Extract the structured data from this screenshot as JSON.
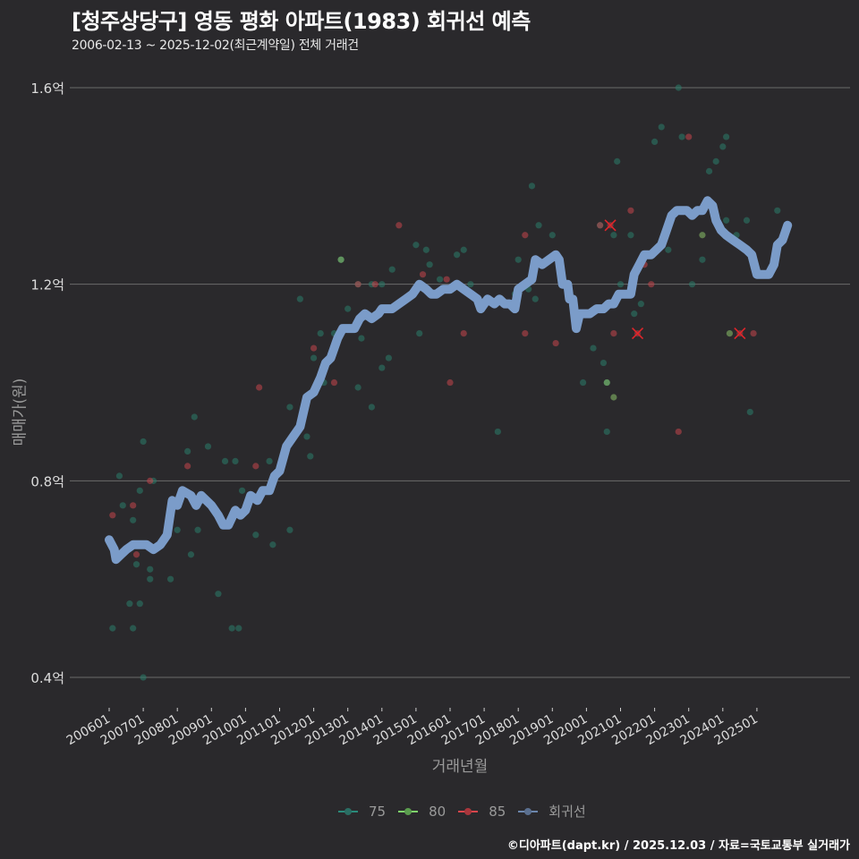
{
  "header": {
    "title": "[청주상당구] 영동 평화 아파트(1983) 회귀선 예측",
    "subtitle": "2006-02-13 ~ 2025-12-02(최근계약일) 전체 거래건"
  },
  "axes": {
    "ylabel": "매매가(원)",
    "xlabel": "거래년월"
  },
  "legend": {
    "items": [
      {
        "label": "75",
        "color": "#2a8a7a"
      },
      {
        "label": "80",
        "color": "#7fd36b"
      },
      {
        "label": "85",
        "color": "#d9454c"
      },
      {
        "label": "회귀선",
        "color": "#7b9cc9"
      }
    ]
  },
  "footer": {
    "credit": "©디아파트(dapt.kr) / 2025.12.03 / 자료=국토교통부 실거래가"
  },
  "colors": {
    "background": "#2a292c",
    "grid": "#6a6a6a",
    "regression": "#7b9cc9",
    "area75": "#2a7d6b",
    "area80": "#8ac26a",
    "area85": "#c4464c",
    "cancel_mark": "#e0252a"
  },
  "chart_data": {
    "type": "scatter",
    "title": "[청주상당구] 영동 평화 아파트(1983) 회귀선 예측",
    "subtitle": "2006-02-13 ~ 2025-12-02(최근계약일) 전체 거래건",
    "xlabel": "거래년월",
    "ylabel": "매매가(원)",
    "x_ticks": [
      "200601",
      "200701",
      "200801",
      "200901",
      "201001",
      "201101",
      "201201",
      "201301",
      "201401",
      "201501",
      "201601",
      "201701",
      "201801",
      "201901",
      "202001",
      "202101",
      "202201",
      "202301",
      "202401",
      "202501"
    ],
    "y_ticks": [
      "0.4억",
      "0.8억",
      "1.2억",
      "1.6억"
    ],
    "y_tick_values": [
      0.4,
      0.8,
      1.2,
      1.6
    ],
    "ylim": [
      0.34,
      1.67
    ],
    "xlim": [
      2005.6,
      2026.5
    ],
    "grid": "horizontal",
    "legend_position": "bottom",
    "series": [
      {
        "name": "75",
        "type": "scatter",
        "points": [
          [
            2006.1,
            0.5
          ],
          [
            2006.3,
            0.81
          ],
          [
            2006.4,
            0.75
          ],
          [
            2006.6,
            0.55
          ],
          [
            2006.7,
            0.72
          ],
          [
            2006.7,
            0.5
          ],
          [
            2006.8,
            0.63
          ],
          [
            2006.9,
            0.78
          ],
          [
            2006.9,
            0.55
          ],
          [
            2007.0,
            0.88
          ],
          [
            2007.0,
            0.4
          ],
          [
            2007.2,
            0.62
          ],
          [
            2007.2,
            0.6
          ],
          [
            2007.3,
            0.8
          ],
          [
            2007.8,
            0.6
          ],
          [
            2008.0,
            0.7
          ],
          [
            2008.3,
            0.86
          ],
          [
            2008.4,
            0.65
          ],
          [
            2008.5,
            0.93
          ],
          [
            2008.6,
            0.7
          ],
          [
            2008.9,
            0.87
          ],
          [
            2009.2,
            0.57
          ],
          [
            2009.4,
            0.84
          ],
          [
            2009.6,
            0.5
          ],
          [
            2009.7,
            0.84
          ],
          [
            2009.8,
            0.5
          ],
          [
            2009.9,
            0.78
          ],
          [
            2010.3,
            0.69
          ],
          [
            2010.7,
            0.84
          ],
          [
            2010.8,
            0.67
          ],
          [
            2011.3,
            0.7
          ],
          [
            2011.3,
            0.95
          ],
          [
            2011.6,
            1.17
          ],
          [
            2011.8,
            0.89
          ],
          [
            2011.9,
            0.85
          ],
          [
            2012.0,
            1.05
          ],
          [
            2012.2,
            1.1
          ],
          [
            2012.3,
            1.0
          ],
          [
            2012.6,
            1.1
          ],
          [
            2012.8,
            1.25
          ],
          [
            2013.0,
            1.15
          ],
          [
            2013.3,
            1.2
          ],
          [
            2013.3,
            0.99
          ],
          [
            2013.4,
            1.09
          ],
          [
            2013.7,
            0.95
          ],
          [
            2013.7,
            1.2
          ],
          [
            2014.0,
            1.2
          ],
          [
            2014.0,
            1.03
          ],
          [
            2014.2,
            1.05
          ],
          [
            2014.3,
            1.23
          ],
          [
            2015.0,
            1.28
          ],
          [
            2015.1,
            1.1
          ],
          [
            2015.3,
            1.27
          ],
          [
            2015.4,
            1.24
          ],
          [
            2015.7,
            1.21
          ],
          [
            2016.2,
            1.26
          ],
          [
            2016.4,
            1.27
          ],
          [
            2016.6,
            1.2
          ],
          [
            2017.4,
            0.9
          ],
          [
            2017.9,
            1.18
          ],
          [
            2018.0,
            1.25
          ],
          [
            2018.3,
            1.19
          ],
          [
            2018.4,
            1.4
          ],
          [
            2018.5,
            1.17
          ],
          [
            2018.6,
            1.32
          ],
          [
            2019.0,
            1.3
          ],
          [
            2019.9,
            1.0
          ],
          [
            2020.2,
            1.07
          ],
          [
            2020.4,
            1.32
          ],
          [
            2020.5,
            1.04
          ],
          [
            2020.6,
            1.0
          ],
          [
            2020.6,
            0.9
          ],
          [
            2020.8,
            1.3
          ],
          [
            2020.9,
            1.45
          ],
          [
            2021.0,
            1.2
          ],
          [
            2021.3,
            1.3
          ],
          [
            2021.4,
            1.14
          ],
          [
            2021.6,
            1.16
          ],
          [
            2022.0,
            1.49
          ],
          [
            2022.2,
            1.52
          ],
          [
            2022.4,
            1.27
          ],
          [
            2022.7,
            1.6
          ],
          [
            2022.8,
            1.5
          ],
          [
            2023.1,
            1.2
          ],
          [
            2023.4,
            1.25
          ],
          [
            2023.6,
            1.43
          ],
          [
            2023.8,
            1.45
          ],
          [
            2024.0,
            1.48
          ],
          [
            2024.1,
            1.33
          ],
          [
            2024.1,
            1.5
          ],
          [
            2024.4,
            1.3
          ],
          [
            2024.7,
            1.33
          ],
          [
            2024.8,
            0.94
          ],
          [
            2025.6,
            1.35
          ]
        ]
      },
      {
        "name": "80",
        "type": "scatter",
        "points": [
          [
            2012.8,
            1.25
          ],
          [
            2020.6,
            1.0
          ],
          [
            2020.8,
            0.97
          ],
          [
            2023.4,
            1.3
          ],
          [
            2024.2,
            1.1
          ]
        ]
      },
      {
        "name": "85",
        "type": "scatter",
        "points": [
          [
            2006.1,
            0.73
          ],
          [
            2006.7,
            0.75
          ],
          [
            2006.8,
            0.65
          ],
          [
            2007.2,
            0.8
          ],
          [
            2008.3,
            0.83
          ],
          [
            2010.4,
            0.99
          ],
          [
            2010.3,
            0.83
          ],
          [
            2012.0,
            1.07
          ],
          [
            2012.6,
            1.0
          ],
          [
            2013.3,
            1.2
          ],
          [
            2013.8,
            1.2
          ],
          [
            2014.5,
            1.32
          ],
          [
            2015.2,
            1.22
          ],
          [
            2015.9,
            1.21
          ],
          [
            2016.0,
            1.0
          ],
          [
            2016.4,
            1.1
          ],
          [
            2018.2,
            1.3
          ],
          [
            2018.2,
            1.1
          ],
          [
            2019.1,
            1.08
          ],
          [
            2020.4,
            1.32
          ],
          [
            2020.8,
            1.1
          ],
          [
            2021.3,
            1.35
          ],
          [
            2021.7,
            1.24
          ],
          [
            2021.9,
            1.2
          ],
          [
            2022.7,
            0.9
          ],
          [
            2023.0,
            1.5
          ],
          [
            2024.9,
            1.1
          ]
        ]
      },
      {
        "name": "cancelled",
        "type": "scatter",
        "marker": "x",
        "points": [
          [
            2020.7,
            1.32
          ],
          [
            2021.5,
            1.1
          ],
          [
            2024.5,
            1.1
          ]
        ]
      },
      {
        "name": "회귀선",
        "type": "line",
        "points": [
          [
            2006.0,
            0.68
          ],
          [
            2006.15,
            0.66
          ],
          [
            2006.2,
            0.64
          ],
          [
            2006.35,
            0.65
          ],
          [
            2006.5,
            0.66
          ],
          [
            2006.7,
            0.67
          ],
          [
            2006.9,
            0.67
          ],
          [
            2007.1,
            0.67
          ],
          [
            2007.3,
            0.66
          ],
          [
            2007.5,
            0.67
          ],
          [
            2007.7,
            0.69
          ],
          [
            2007.85,
            0.76
          ],
          [
            2008.0,
            0.75
          ],
          [
            2008.15,
            0.78
          ],
          [
            2008.4,
            0.77
          ],
          [
            2008.55,
            0.75
          ],
          [
            2008.7,
            0.77
          ],
          [
            2008.85,
            0.76
          ],
          [
            2009.0,
            0.75
          ],
          [
            2009.2,
            0.73
          ],
          [
            2009.35,
            0.71
          ],
          [
            2009.5,
            0.71
          ],
          [
            2009.7,
            0.74
          ],
          [
            2009.85,
            0.73
          ],
          [
            2010.0,
            0.74
          ],
          [
            2010.15,
            0.77
          ],
          [
            2010.35,
            0.76
          ],
          [
            2010.5,
            0.78
          ],
          [
            2010.7,
            0.78
          ],
          [
            2010.85,
            0.81
          ],
          [
            2011.0,
            0.82
          ],
          [
            2011.2,
            0.87
          ],
          [
            2011.4,
            0.89
          ],
          [
            2011.6,
            0.91
          ],
          [
            2011.8,
            0.97
          ],
          [
            2012.0,
            0.98
          ],
          [
            2012.2,
            1.01
          ],
          [
            2012.35,
            1.04
          ],
          [
            2012.5,
            1.05
          ],
          [
            2012.7,
            1.09
          ],
          [
            2012.85,
            1.11
          ],
          [
            2013.0,
            1.11
          ],
          [
            2013.2,
            1.11
          ],
          [
            2013.35,
            1.13
          ],
          [
            2013.5,
            1.14
          ],
          [
            2013.7,
            1.13
          ],
          [
            2013.9,
            1.14
          ],
          [
            2014.0,
            1.15
          ],
          [
            2014.3,
            1.15
          ],
          [
            2014.5,
            1.16
          ],
          [
            2014.7,
            1.17
          ],
          [
            2014.9,
            1.18
          ],
          [
            2015.1,
            1.2
          ],
          [
            2015.3,
            1.19
          ],
          [
            2015.45,
            1.18
          ],
          [
            2015.6,
            1.18
          ],
          [
            2015.8,
            1.19
          ],
          [
            2016.0,
            1.19
          ],
          [
            2016.2,
            1.2
          ],
          [
            2016.4,
            1.19
          ],
          [
            2016.6,
            1.18
          ],
          [
            2016.8,
            1.17
          ],
          [
            2016.9,
            1.15
          ],
          [
            2017.1,
            1.17
          ],
          [
            2017.3,
            1.16
          ],
          [
            2017.45,
            1.17
          ],
          [
            2017.6,
            1.16
          ],
          [
            2017.75,
            1.16
          ],
          [
            2017.9,
            1.15
          ],
          [
            2018.0,
            1.19
          ],
          [
            2018.2,
            1.2
          ],
          [
            2018.4,
            1.21
          ],
          [
            2018.5,
            1.25
          ],
          [
            2018.7,
            1.24
          ],
          [
            2018.9,
            1.25
          ],
          [
            2019.1,
            1.26
          ],
          [
            2019.2,
            1.25
          ],
          [
            2019.3,
            1.2
          ],
          [
            2019.45,
            1.2
          ],
          [
            2019.5,
            1.17
          ],
          [
            2019.6,
            1.17
          ],
          [
            2019.7,
            1.11
          ],
          [
            2019.8,
            1.14
          ],
          [
            2019.95,
            1.14
          ],
          [
            2020.1,
            1.14
          ],
          [
            2020.3,
            1.15
          ],
          [
            2020.5,
            1.15
          ],
          [
            2020.65,
            1.16
          ],
          [
            2020.8,
            1.16
          ],
          [
            2020.95,
            1.18
          ],
          [
            2021.1,
            1.18
          ],
          [
            2021.3,
            1.18
          ],
          [
            2021.4,
            1.22
          ],
          [
            2021.55,
            1.24
          ],
          [
            2021.7,
            1.26
          ],
          [
            2021.9,
            1.26
          ],
          [
            2022.05,
            1.27
          ],
          [
            2022.2,
            1.28
          ],
          [
            2022.35,
            1.31
          ],
          [
            2022.5,
            1.34
          ],
          [
            2022.65,
            1.35
          ],
          [
            2022.8,
            1.35
          ],
          [
            2022.95,
            1.35
          ],
          [
            2023.1,
            1.34
          ],
          [
            2023.25,
            1.35
          ],
          [
            2023.4,
            1.35
          ],
          [
            2023.55,
            1.37
          ],
          [
            2023.7,
            1.36
          ],
          [
            2023.8,
            1.33
          ],
          [
            2023.95,
            1.31
          ],
          [
            2024.1,
            1.3
          ],
          [
            2024.3,
            1.29
          ],
          [
            2024.5,
            1.28
          ],
          [
            2024.7,
            1.27
          ],
          [
            2024.85,
            1.26
          ],
          [
            2025.0,
            1.22
          ],
          [
            2025.2,
            1.22
          ],
          [
            2025.35,
            1.22
          ],
          [
            2025.5,
            1.24
          ],
          [
            2025.6,
            1.28
          ],
          [
            2025.75,
            1.29
          ],
          [
            2025.9,
            1.32
          ]
        ]
      }
    ]
  }
}
